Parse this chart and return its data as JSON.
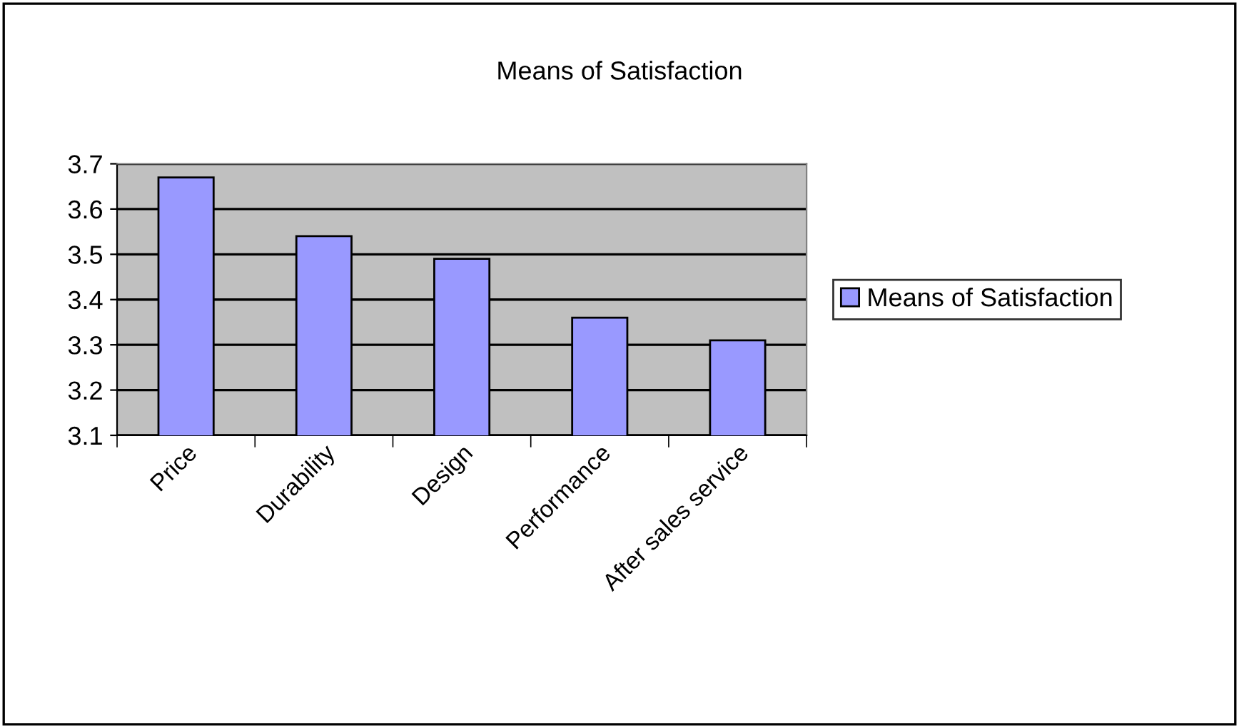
{
  "chart_data": {
    "type": "bar",
    "title": "Means of Satisfaction",
    "categories": [
      "Price",
      "Durability",
      "Design",
      "Performance",
      "After sales service"
    ],
    "series": [
      {
        "name": "Means of Satisfaction",
        "color": "#9999ff",
        "values": [
          3.67,
          3.54,
          3.49,
          3.36,
          3.31
        ]
      }
    ],
    "ylim": [
      3.1,
      3.7
    ],
    "yticks": [
      3.1,
      3.2,
      3.3,
      3.4,
      3.5,
      3.6,
      3.7
    ],
    "grid": "y",
    "legend": "right"
  }
}
